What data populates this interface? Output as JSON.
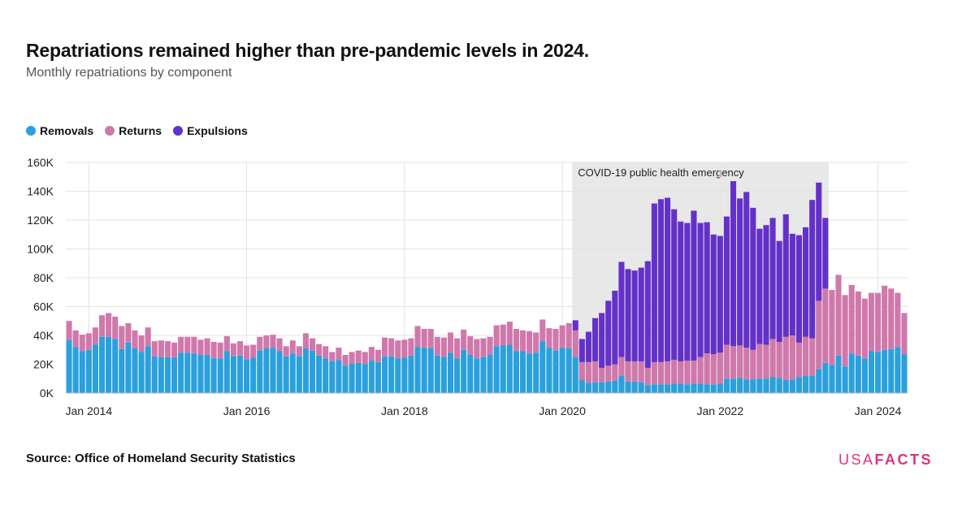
{
  "header": {
    "title": "Repatriations remained higher than pre-pandemic levels in 2024.",
    "subtitle": "Monthly repatriations by component"
  },
  "legend": [
    {
      "label": "Removals",
      "color": "#2aa0dc"
    },
    {
      "label": "Returns",
      "color": "#d078ab"
    },
    {
      "label": "Expulsions",
      "color": "#6331c9"
    }
  ],
  "footer": {
    "source_label": "Source:",
    "source_text": "Office of Homeland Security Statistics",
    "logo_light": "USA",
    "logo_bold": "FACTS"
  },
  "chart_data": {
    "type": "bar",
    "stacked": true,
    "start_month": "2013-10",
    "y_ticks": [
      0,
      20000,
      40000,
      60000,
      80000,
      100000,
      120000,
      140000,
      160000
    ],
    "y_tick_labels": [
      "0K",
      "20K",
      "40K",
      "60K",
      "80K",
      "100K",
      "120K",
      "140K",
      "160K"
    ],
    "ylim": [
      0,
      160000
    ],
    "x_ticks": [
      {
        "month": "2014-01",
        "label": "Jan 2014"
      },
      {
        "month": "2016-01",
        "label": "Jan 2016"
      },
      {
        "month": "2018-01",
        "label": "Jan 2018"
      },
      {
        "month": "2020-01",
        "label": "Jan 2020"
      },
      {
        "month": "2022-01",
        "label": "Jan 2022"
      },
      {
        "month": "2024-01",
        "label": "Jan 2024"
      }
    ],
    "annotation": {
      "label": "COVID-19 public health emergency",
      "start_month": "2020-03",
      "end_month": "2023-05"
    },
    "grid": true,
    "legend_position": "top-left",
    "series": [
      {
        "name": "Removals",
        "color": "#2aa0dc",
        "values": [
          37000,
          32000,
          29000,
          30000,
          33500,
          39000,
          39000,
          37500,
          30500,
          35000,
          31000,
          28500,
          32500,
          25500,
          25000,
          25000,
          24500,
          28000,
          28000,
          27500,
          26500,
          26500,
          24000,
          24000,
          29000,
          25500,
          26000,
          23500,
          24500,
          29500,
          31000,
          31500,
          29000,
          25500,
          27500,
          25500,
          31000,
          29500,
          26000,
          24000,
          22000,
          23000,
          19000,
          20500,
          21000,
          20000,
          22500,
          21500,
          25500,
          25500,
          24000,
          24500,
          26000,
          32000,
          31500,
          31000,
          26000,
          25000,
          28000,
          24000,
          30000,
          26500,
          24000,
          25000,
          26500,
          32500,
          33000,
          33500,
          29000,
          29000,
          27500,
          28000,
          36000,
          31500,
          29500,
          31500,
          31000,
          25000,
          9000,
          7000,
          7500,
          7500,
          8000,
          8500,
          12000,
          8000,
          8000,
          7500,
          5500,
          6000,
          6000,
          6000,
          6500,
          6500,
          6000,
          6500,
          6500,
          6000,
          6000,
          6500,
          10000,
          10000,
          10500,
          9500,
          9500,
          10000,
          10000,
          11000,
          10500,
          9000,
          9500,
          11000,
          12000,
          12000,
          16500,
          21000,
          19500,
          26000,
          18500,
          27500,
          26000,
          24000,
          29000,
          28500,
          30000,
          30500,
          32000,
          27000
        ]
      },
      {
        "name": "Returns",
        "color": "#d078ab",
        "values": [
          13000,
          11500,
          11500,
          11500,
          12000,
          15000,
          16500,
          15500,
          16000,
          13500,
          12500,
          11500,
          13000,
          10500,
          11500,
          11000,
          10500,
          11000,
          11000,
          11500,
          10500,
          11500,
          11500,
          11000,
          10500,
          9000,
          10000,
          9500,
          9000,
          9500,
          9000,
          9000,
          9000,
          7000,
          9000,
          7000,
          10500,
          8500,
          8000,
          8500,
          6500,
          8500,
          7500,
          8000,
          8500,
          8500,
          9500,
          8500,
          13000,
          12500,
          12500,
          12500,
          12000,
          14500,
          13000,
          13500,
          13000,
          13500,
          14000,
          14000,
          14000,
          13000,
          13500,
          13000,
          12500,
          14500,
          14500,
          16000,
          15500,
          14500,
          15500,
          14000,
          15000,
          13500,
          15000,
          15500,
          17500,
          18500,
          12500,
          14500,
          14500,
          10000,
          11000,
          11500,
          13000,
          14000,
          14000,
          14500,
          12000,
          15500,
          15500,
          16000,
          16500,
          15500,
          16500,
          16000,
          18500,
          21500,
          21000,
          21500,
          23500,
          22500,
          22500,
          22000,
          20500,
          24000,
          23500,
          26500,
          25000,
          30000,
          30500,
          24000,
          27000,
          26000,
          47500,
          51500,
          52000,
          56000,
          49500,
          47500,
          44500,
          41500,
          40500,
          41000,
          44500,
          42000,
          37500,
          28500
        ]
      },
      {
        "name": "Expulsions",
        "color": "#6331c9",
        "values": [
          0,
          0,
          0,
          0,
          0,
          0,
          0,
          0,
          0,
          0,
          0,
          0,
          0,
          0,
          0,
          0,
          0,
          0,
          0,
          0,
          0,
          0,
          0,
          0,
          0,
          0,
          0,
          0,
          0,
          0,
          0,
          0,
          0,
          0,
          0,
          0,
          0,
          0,
          0,
          0,
          0,
          0,
          0,
          0,
          0,
          0,
          0,
          0,
          0,
          0,
          0,
          0,
          0,
          0,
          0,
          0,
          0,
          0,
          0,
          0,
          0,
          0,
          0,
          0,
          0,
          0,
          0,
          0,
          0,
          0,
          0,
          0,
          0,
          0,
          0,
          0,
          0,
          7000,
          16000,
          21000,
          30000,
          38000,
          45000,
          51000,
          66000,
          64000,
          63000,
          65000,
          74000,
          110000,
          113000,
          113500,
          104500,
          97000,
          95500,
          104000,
          93000,
          91000,
          83000,
          81000,
          89000,
          114500,
          102000,
          108000,
          98500,
          80000,
          83000,
          84000,
          70000,
          85000,
          70500,
          74500,
          76000,
          96000,
          82000,
          49000,
          0,
          0,
          0,
          0,
          0,
          0,
          0,
          0,
          0,
          0,
          0,
          0,
          0,
          0
        ]
      }
    ]
  }
}
